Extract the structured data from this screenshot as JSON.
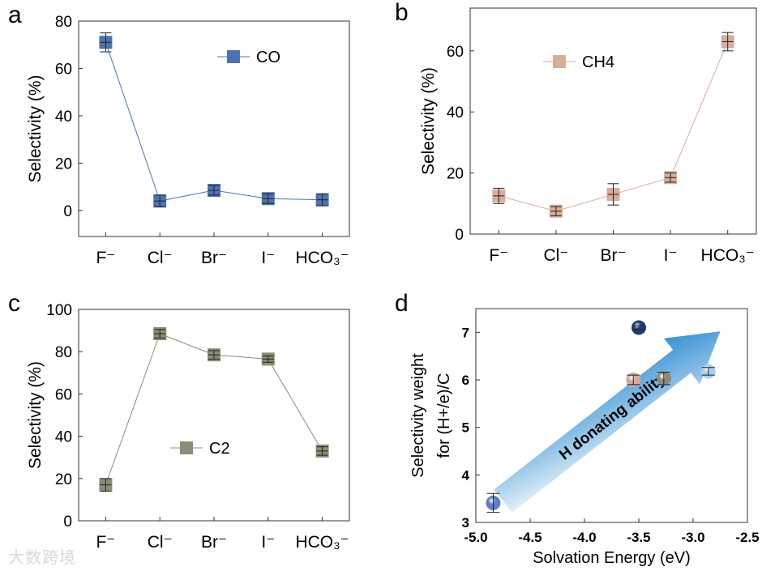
{
  "chart_data": [
    {
      "panel": "a",
      "type": "line",
      "categories": [
        "F⁻",
        "Cl⁻",
        "Br⁻",
        "I⁻",
        "HCO₃⁻"
      ],
      "ylabel": "Selectivity (%)",
      "ylim": [
        -11,
        80
      ],
      "yticks": [
        0,
        20,
        40,
        60,
        80
      ],
      "series": [
        {
          "name": "CO",
          "values": [
            71,
            4,
            8.5,
            5,
            4.5
          ],
          "errors": [
            4,
            2.5,
            2,
            2,
            2.5
          ],
          "color": "#4f73b0"
        }
      ],
      "legend": "top-right"
    },
    {
      "panel": "b",
      "type": "line",
      "categories": [
        "F⁻",
        "Cl⁻",
        "Br⁻",
        "I⁻",
        "HCO₃⁻"
      ],
      "ylabel": "Selectivity (%)",
      "ylim": [
        0,
        74
      ],
      "yticks": [
        0,
        20,
        40,
        60
      ],
      "series": [
        {
          "name": "CH4",
          "values": [
            12.5,
            7.5,
            13,
            18.5,
            63
          ],
          "errors": [
            2.5,
            1.5,
            3.5,
            1.5,
            3
          ],
          "color": "#d7ad9b"
        }
      ],
      "legend": "top-left"
    },
    {
      "panel": "c",
      "type": "line",
      "categories": [
        "F⁻",
        "Cl⁻",
        "Br⁻",
        "I⁻",
        "HCO₃⁻"
      ],
      "ylabel": "Selectivity (%)",
      "ylim": [
        0,
        100
      ],
      "yticks": [
        0,
        20,
        40,
        60,
        80,
        100
      ],
      "series": [
        {
          "name": "C2",
          "values": [
            17,
            88.5,
            78.5,
            76.5,
            33
          ],
          "errors": [
            3,
            2,
            2,
            1.5,
            2
          ],
          "color": "#8c8c78"
        }
      ],
      "legend": "center"
    },
    {
      "panel": "d",
      "type": "scatter",
      "xlabel": "Solvation Energy (eV)",
      "ylabel": [
        "Selectivity weight",
        "for (H+/e)/C"
      ],
      "xlim": [
        -5.0,
        -2.5
      ],
      "ylim": [
        3,
        7.5
      ],
      "xticks": [
        "-5.0",
        "-4.5",
        "-4.0",
        "-3.5",
        "-3.0",
        "-2.5"
      ],
      "yticks": [
        3,
        4,
        5,
        6,
        7
      ],
      "points": [
        {
          "x": -4.84,
          "y": 3.41,
          "err": 0.2,
          "color": "#5b7fc0"
        },
        {
          "x": -3.55,
          "y": 6.0,
          "err": 0.1,
          "color": "#d4a99a"
        },
        {
          "x": -3.5,
          "y": 7.1,
          "err": 0.04,
          "color": "#1f3a7a"
        },
        {
          "x": -3.27,
          "y": 6.03,
          "err": 0.13,
          "color": "#8d8b78"
        },
        {
          "x": -2.86,
          "y": 6.18,
          "err": 0.08,
          "color": "#a9d0e8"
        }
      ],
      "annotation": "H donating ability"
    }
  ],
  "panel_labels": [
    "a",
    "b",
    "c",
    "d"
  ],
  "watermark": "大数跨境"
}
